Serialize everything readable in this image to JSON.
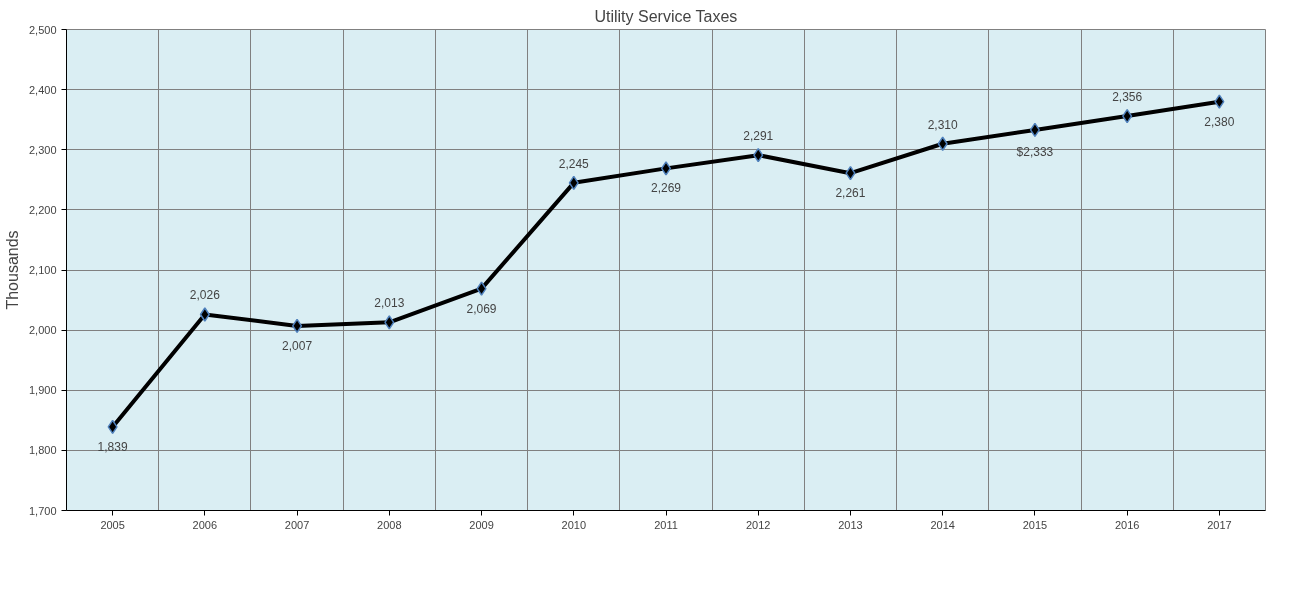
{
  "chart_data": {
    "type": "line",
    "title": "Utility Service Taxes",
    "ylabel": "Thousands",
    "categories": [
      "2005",
      "2006",
      "2007",
      "2008",
      "2009",
      "2010",
      "2011",
      "2012",
      "2013",
      "2014",
      "2015",
      "2016",
      "2017"
    ],
    "series": [
      {
        "color": "#000000",
        "values": [
          1839,
          2026,
          2007,
          2013,
          2069,
          2245,
          2269,
          2291,
          2261,
          2310,
          2333,
          2356,
          2380
        ],
        "value_labels": [
          "1,839",
          "2,026",
          "2,007",
          "2,013",
          "2,069",
          "2,245",
          "2,269",
          "2,291",
          "2,261",
          "2,310",
          "$2,333",
          "2,356",
          "2,380"
        ]
      }
    ],
    "ylim": [
      1700,
      2500
    ],
    "yticks": [
      {
        "value": 1700,
        "label": "1,700"
      },
      {
        "value": 1800,
        "label": "1,800"
      },
      {
        "value": 1900,
        "label": "1,900"
      },
      {
        "value": 2000,
        "label": "2,000"
      },
      {
        "value": 2100,
        "label": "2,100"
      },
      {
        "value": 2200,
        "label": "2,200"
      },
      {
        "value": 2300,
        "label": "2,300"
      },
      {
        "value": 2400,
        "label": "2,400"
      },
      {
        "value": 2500,
        "label": "2,500"
      }
    ],
    "grid": true,
    "marker": "diamond",
    "line_style": "solid"
  }
}
